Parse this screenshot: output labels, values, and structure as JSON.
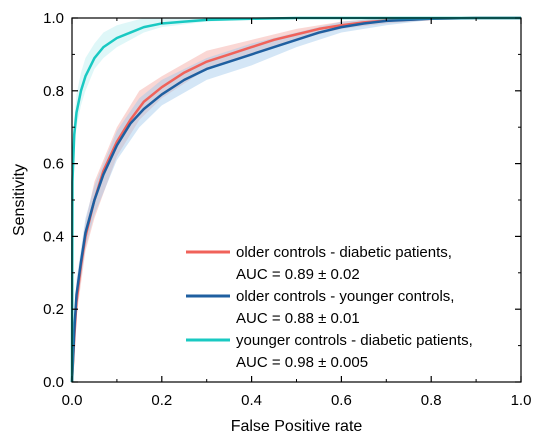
{
  "chart_data": {
    "type": "line",
    "title": "",
    "xlabel": "False Positive rate",
    "ylabel": "Sensitivity",
    "xlim": [
      0,
      1
    ],
    "ylim": [
      0,
      1
    ],
    "x_ticks": [
      "0.0",
      "0.2",
      "0.4",
      "0.6",
      "0.8",
      "1.0"
    ],
    "y_ticks": [
      "0.0",
      "0.2",
      "0.4",
      "0.6",
      "0.8",
      "1.0"
    ],
    "grid": false,
    "legend_position": "bottom-right",
    "series": [
      {
        "name": "older controls - diabetic patients,",
        "annotation": "AUC = 0.89 ± 0.02",
        "color": "#f0625a",
        "band_color": "#f4a6a0",
        "points": [
          [
            0,
            0
          ],
          [
            0.005,
            0.12
          ],
          [
            0.01,
            0.22
          ],
          [
            0.02,
            0.32
          ],
          [
            0.03,
            0.4
          ],
          [
            0.05,
            0.5
          ],
          [
            0.07,
            0.58
          ],
          [
            0.1,
            0.66
          ],
          [
            0.13,
            0.72
          ],
          [
            0.16,
            0.77
          ],
          [
            0.2,
            0.81
          ],
          [
            0.25,
            0.85
          ],
          [
            0.3,
            0.88
          ],
          [
            0.35,
            0.9
          ],
          [
            0.4,
            0.92
          ],
          [
            0.45,
            0.94
          ],
          [
            0.5,
            0.955
          ],
          [
            0.55,
            0.97
          ],
          [
            0.6,
            0.98
          ],
          [
            0.65,
            0.988
          ],
          [
            0.7,
            0.993
          ],
          [
            0.8,
            0.998
          ],
          [
            0.9,
            1
          ],
          [
            1,
            1
          ]
        ],
        "band": [
          [
            0,
            0,
            0
          ],
          [
            0.01,
            0.18,
            0.26
          ],
          [
            0.03,
            0.36,
            0.44
          ],
          [
            0.05,
            0.45,
            0.55
          ],
          [
            0.1,
            0.62,
            0.7
          ],
          [
            0.15,
            0.72,
            0.8
          ],
          [
            0.2,
            0.78,
            0.84
          ],
          [
            0.3,
            0.86,
            0.91
          ],
          [
            0.4,
            0.9,
            0.94
          ],
          [
            0.5,
            0.94,
            0.97
          ],
          [
            0.6,
            0.97,
            0.99
          ],
          [
            0.7,
            0.985,
            1
          ],
          [
            0.8,
            0.995,
            1
          ],
          [
            0.9,
            1,
            1
          ],
          [
            1,
            1,
            1
          ]
        ]
      },
      {
        "name": "older controls - younger controls,",
        "annotation": "AUC = 0.88 ± 0.01",
        "color": "#1f5fa0",
        "band_color": "#9fc8ea",
        "points": [
          [
            0,
            0
          ],
          [
            0.005,
            0.14
          ],
          [
            0.01,
            0.24
          ],
          [
            0.02,
            0.33
          ],
          [
            0.03,
            0.41
          ],
          [
            0.05,
            0.5
          ],
          [
            0.07,
            0.57
          ],
          [
            0.1,
            0.65
          ],
          [
            0.13,
            0.71
          ],
          [
            0.16,
            0.75
          ],
          [
            0.2,
            0.79
          ],
          [
            0.25,
            0.83
          ],
          [
            0.3,
            0.86
          ],
          [
            0.35,
            0.88
          ],
          [
            0.4,
            0.9
          ],
          [
            0.45,
            0.92
          ],
          [
            0.5,
            0.94
          ],
          [
            0.55,
            0.96
          ],
          [
            0.6,
            0.975
          ],
          [
            0.65,
            0.985
          ],
          [
            0.7,
            0.992
          ],
          [
            0.8,
            0.998
          ],
          [
            0.9,
            1
          ],
          [
            1,
            1
          ]
        ],
        "band": [
          [
            0,
            0,
            0
          ],
          [
            0.01,
            0.2,
            0.28
          ],
          [
            0.03,
            0.37,
            0.45
          ],
          [
            0.05,
            0.46,
            0.54
          ],
          [
            0.1,
            0.61,
            0.69
          ],
          [
            0.15,
            0.7,
            0.78
          ],
          [
            0.2,
            0.76,
            0.83
          ],
          [
            0.3,
            0.83,
            0.89
          ],
          [
            0.4,
            0.87,
            0.93
          ],
          [
            0.5,
            0.92,
            0.96
          ],
          [
            0.6,
            0.96,
            0.99
          ],
          [
            0.7,
            0.98,
            1
          ],
          [
            0.8,
            0.995,
            1
          ],
          [
            0.9,
            1,
            1
          ],
          [
            1,
            1,
            1
          ]
        ]
      },
      {
        "name": "younger controls - diabetic patients,",
        "annotation": "AUC = 0.98 ± 0.005",
        "color": "#19c9c2",
        "band_color": "#b8eef0",
        "points": [
          [
            0,
            0
          ],
          [
            0.001,
            0.55
          ],
          [
            0.005,
            0.68
          ],
          [
            0.01,
            0.74
          ],
          [
            0.02,
            0.8
          ],
          [
            0.03,
            0.84
          ],
          [
            0.05,
            0.89
          ],
          [
            0.07,
            0.92
          ],
          [
            0.1,
            0.945
          ],
          [
            0.13,
            0.96
          ],
          [
            0.16,
            0.975
          ],
          [
            0.2,
            0.985
          ],
          [
            0.25,
            0.99
          ],
          [
            0.3,
            0.995
          ],
          [
            0.4,
            0.998
          ],
          [
            0.5,
            1
          ],
          [
            1,
            1
          ]
        ],
        "band": [
          [
            0,
            0,
            0
          ],
          [
            0.005,
            0.64,
            0.72
          ],
          [
            0.01,
            0.7,
            0.79
          ],
          [
            0.02,
            0.76,
            0.85
          ],
          [
            0.03,
            0.8,
            0.89
          ],
          [
            0.05,
            0.86,
            0.93
          ],
          [
            0.07,
            0.89,
            0.96
          ],
          [
            0.1,
            0.92,
            0.98
          ],
          [
            0.13,
            0.94,
            0.99
          ],
          [
            0.16,
            0.96,
            1
          ],
          [
            0.2,
            0.975,
            1
          ],
          [
            0.3,
            0.99,
            1
          ],
          [
            0.4,
            0.996,
            1
          ],
          [
            0.5,
            1,
            1
          ],
          [
            1,
            1,
            1
          ]
        ]
      }
    ]
  }
}
